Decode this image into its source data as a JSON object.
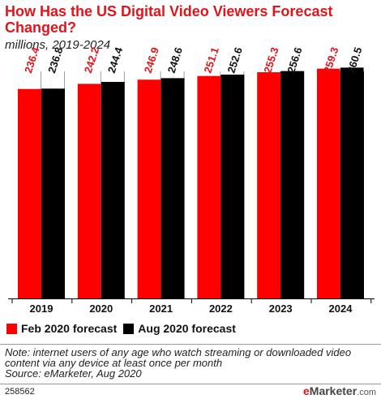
{
  "title": "How Has the US Digital Video Viewers Forecast Changed?",
  "subtitle": "millions, 2019-2024",
  "chart_data": {
    "type": "bar",
    "categories": [
      "2019",
      "2020",
      "2021",
      "2022",
      "2023",
      "2024"
    ],
    "series": [
      {
        "name": "Feb 2020 forecast",
        "values": [
          236.4,
          242.2,
          246.9,
          251.1,
          255.3,
          259.3
        ],
        "labels": [
          "236.4",
          "242.2",
          "246.9",
          "251.1",
          "255.3",
          "259.3"
        ],
        "color": "#ff0000"
      },
      {
        "name": "Aug 2020 forecast",
        "values": [
          236.8,
          244.4,
          248.6,
          252.6,
          256.6,
          260.5
        ],
        "labels": [
          "236.8",
          "244.4",
          "248.6",
          "252.6",
          "256.6",
          "260.5"
        ],
        "color": "#000000"
      }
    ],
    "ylim": [
      0,
      270
    ],
    "grid": false,
    "legend_position": "bottom-left",
    "value_label_colors": [
      "#e0141b",
      "#111111"
    ]
  },
  "note": "Note: internet users of any age who watch streaming or downloaded video content via any device at least once per month",
  "source": "Source: eMarketer, Aug 2020",
  "chart_id": "258562",
  "brand": {
    "e": "e",
    "name": "Marketer",
    "dotcom": ".com"
  }
}
